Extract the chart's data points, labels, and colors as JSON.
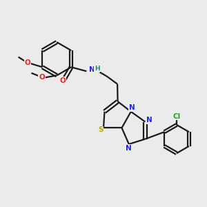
{
  "bg": "#ebebeb",
  "bond_color": "#1a1a1a",
  "lw": 1.6,
  "fs": 7.5,
  "N_color": "#2222ee",
  "O_color": "#ee2222",
  "S_color": "#aaaa00",
  "Cl_color": "#22aa22",
  "NH_color": "#228888",
  "C_color": "#1a1a1a",
  "xlim": [
    0,
    10
  ],
  "ylim": [
    0,
    10
  ]
}
